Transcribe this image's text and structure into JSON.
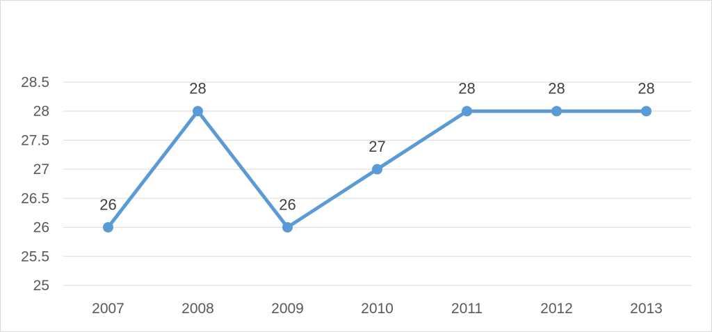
{
  "chart_data": {
    "type": "line",
    "title": "",
    "xlabel": "",
    "ylabel": "",
    "categories": [
      "2007",
      "2008",
      "2009",
      "2010",
      "2011",
      "2012",
      "2013"
    ],
    "series": [
      {
        "values": [
          26,
          28,
          26,
          27,
          28,
          28,
          28
        ]
      }
    ],
    "ylim": [
      25,
      28.5
    ],
    "yticks": [
      "25",
      "25.5",
      "26",
      "26.5",
      "27",
      "27.5",
      "28",
      "28.5"
    ],
    "grid": true,
    "legend": "none",
    "data_labels": true,
    "colors": {
      "series": "#5b9bd5",
      "grid": "#d9d9d9",
      "tick_text": "#595959",
      "label_text": "#404040"
    }
  }
}
